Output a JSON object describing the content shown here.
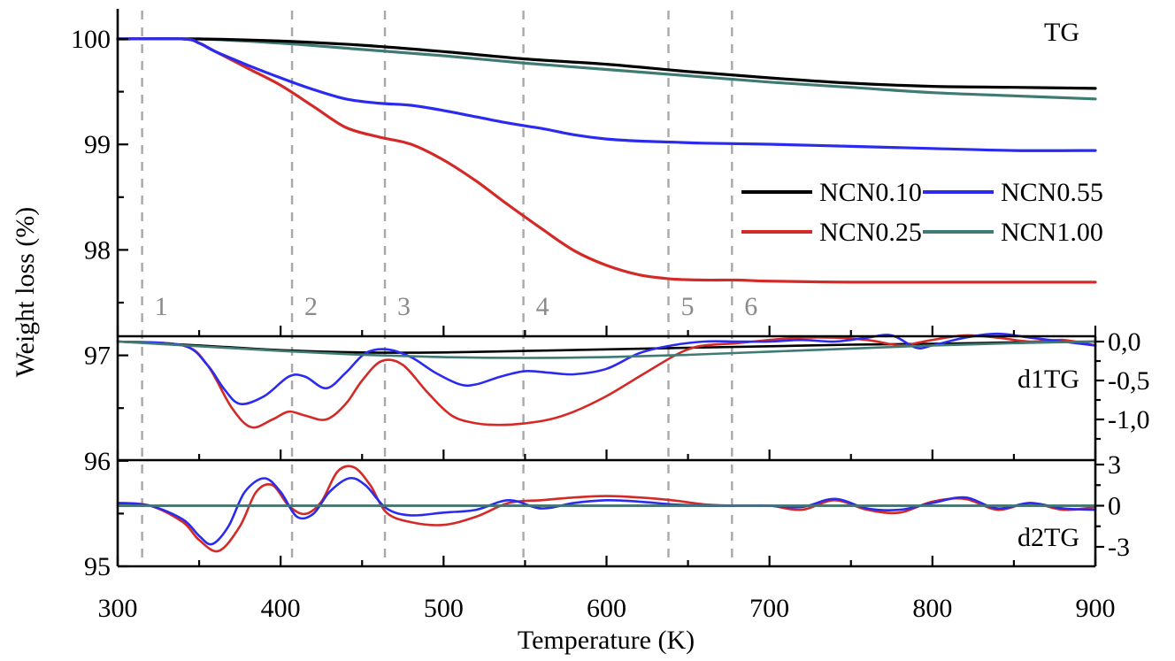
{
  "chart_data": {
    "type": "line",
    "xlabel": "Temperature (K)",
    "ylabel": "Weight loss (%)",
    "xlim": [
      300,
      900
    ],
    "x_ticks": [
      "300",
      "400",
      "500",
      "600",
      "700",
      "800",
      "900"
    ],
    "colors": {
      "NCN0.10": "#000000",
      "NCN0.25": "#d42a27",
      "NCN0.55": "#2b2bf0",
      "NCN1.00": "#3f7a73"
    },
    "vertical_markers": [
      {
        "label": "1",
        "x": 315
      },
      {
        "label": "2",
        "x": 407
      },
      {
        "label": "3",
        "x": 464
      },
      {
        "label": "4",
        "x": 549
      },
      {
        "label": "5",
        "x": 638
      },
      {
        "label": "6",
        "x": 677
      }
    ],
    "panels": [
      {
        "id": "tg",
        "label": "TG",
        "ylim": [
          97.2,
          100.3
        ],
        "legend": "upper-right, two columns",
        "series": [
          {
            "name": "NCN0.10",
            "x": [
              300,
              350,
              400,
              450,
              500,
              550,
              600,
              650,
              700,
              750,
              800,
              850,
              900
            ],
            "y": [
              100.0,
              100.0,
              99.98,
              99.94,
              99.88,
              99.81,
              99.76,
              99.69,
              99.63,
              99.58,
              99.55,
              99.54,
              99.53
            ]
          },
          {
            "name": "NCN0.25",
            "x": [
              300,
              340,
              350,
              360,
              380,
              400,
              420,
              440,
              460,
              480,
              500,
              520,
              540,
              560,
              580,
              600,
              620,
              640,
              660,
              680,
              700,
              750,
              800,
              850,
              900
            ],
            "y": [
              100.0,
              100.0,
              99.96,
              99.88,
              99.72,
              99.56,
              99.36,
              99.16,
              99.07,
              99.0,
              98.85,
              98.65,
              98.42,
              98.2,
              97.99,
              97.85,
              97.76,
              97.72,
              97.71,
              97.71,
              97.7,
              97.69,
              97.69,
              97.69,
              97.69
            ]
          },
          {
            "name": "NCN0.55",
            "x": [
              300,
              340,
              350,
              360,
              380,
              400,
              420,
              440,
              460,
              480,
              500,
              520,
              540,
              560,
              580,
              600,
              620,
              640,
              660,
              700,
              750,
              800,
              850,
              900
            ],
            "y": [
              100.0,
              100.0,
              99.96,
              99.88,
              99.75,
              99.63,
              99.52,
              99.43,
              99.39,
              99.37,
              99.32,
              99.26,
              99.2,
              99.15,
              99.09,
              99.05,
              99.03,
              99.02,
              99.01,
              99.0,
              98.98,
              98.96,
              98.94,
              98.94
            ]
          },
          {
            "name": "NCN1.00",
            "x": [
              300,
              350,
              400,
              450,
              500,
              550,
              600,
              650,
              700,
              750,
              800,
              850,
              900
            ],
            "y": [
              100.0,
              100.0,
              99.96,
              99.9,
              99.84,
              99.77,
              99.71,
              99.65,
              99.59,
              99.54,
              99.49,
              99.46,
              99.43
            ]
          }
        ]
      },
      {
        "id": "d1tg",
        "label": "d1TG",
        "y_ticks": [
          "0,0",
          "-0,5",
          "-1,0"
        ],
        "ylim": [
          -1.45,
          0.15
        ],
        "series": [
          {
            "name": "NCN0.10",
            "x": [
              300,
              350,
              400,
              450,
              500,
              550,
              600,
              650,
              700,
              750,
              800,
              850,
              900
            ],
            "y": [
              0,
              -0.05,
              -0.11,
              -0.14,
              -0.14,
              -0.12,
              -0.1,
              -0.08,
              -0.06,
              -0.04,
              -0.03,
              -0.01,
              0
            ]
          },
          {
            "name": "NCN0.25",
            "x": [
              300,
              340,
              355,
              370,
              382,
              395,
              405,
              415,
              428,
              440,
              450,
              462,
              475,
              490,
              505,
              520,
              535,
              550,
              565,
              580,
              600,
              620,
              640,
              650,
              660,
              680,
              700,
              720,
              740,
              760,
              780,
              790,
              800,
              820,
              840,
              860,
              880,
              900
            ],
            "y": [
              0,
              -0.05,
              -0.3,
              -0.85,
              -1.1,
              -1.0,
              -0.9,
              -0.95,
              -1.0,
              -0.8,
              -0.5,
              -0.25,
              -0.3,
              -0.65,
              -0.95,
              -1.05,
              -1.07,
              -1.05,
              -1.0,
              -0.9,
              -0.7,
              -0.45,
              -0.2,
              -0.1,
              -0.05,
              -0.02,
              0.02,
              0.05,
              0.05,
              0.02,
              -0.05,
              -0.02,
              0.02,
              0.08,
              0.05,
              0.0,
              0.02,
              -0.05
            ]
          },
          {
            "name": "NCN0.55",
            "x": [
              300,
              340,
              355,
              365,
              375,
              390,
              405,
              415,
              428,
              440,
              452,
              465,
              480,
              495,
              510,
              520,
              535,
              550,
              565,
              580,
              600,
              620,
              640,
              660,
              680,
              700,
              720,
              740,
              760,
              775,
              790,
              800,
              820,
              840,
              860,
              880,
              900
            ],
            "y": [
              0,
              -0.05,
              -0.3,
              -0.6,
              -0.8,
              -0.7,
              -0.45,
              -0.45,
              -0.6,
              -0.4,
              -0.15,
              -0.1,
              -0.2,
              -0.4,
              -0.55,
              -0.55,
              -0.45,
              -0.38,
              -0.4,
              -0.42,
              -0.35,
              -0.15,
              -0.05,
              0.0,
              0.0,
              0.0,
              0.02,
              0.0,
              0.05,
              0.08,
              -0.08,
              -0.05,
              0.05,
              0.1,
              0.05,
              0.0,
              -0.05
            ]
          },
          {
            "name": "NCN1.00",
            "x": [
              300,
              350,
              400,
              450,
              500,
              550,
              600,
              650,
              700,
              750,
              800,
              850,
              900
            ],
            "y": [
              0,
              -0.06,
              -0.12,
              -0.17,
              -0.2,
              -0.21,
              -0.2,
              -0.17,
              -0.13,
              -0.09,
              -0.05,
              -0.02,
              0
            ]
          }
        ]
      },
      {
        "id": "d2tg",
        "label": "d2TG",
        "y_ticks": [
          "3",
          "0",
          "-3"
        ],
        "ylim": [
          -4.2,
          4.0
        ],
        "series": [
          {
            "name": "NCN0.10",
            "x": [
              300,
              900
            ],
            "y": [
              0,
              0
            ]
          },
          {
            "name": "NCN0.25",
            "x": [
              300,
              320,
              340,
              350,
              362,
              375,
              385,
              395,
              405,
              415,
              425,
              435,
              445,
              455,
              465,
              480,
              500,
              520,
              540,
              560,
              580,
              600,
              620,
              640,
              660,
              680,
              700,
              720,
              740,
              760,
              780,
              800,
              820,
              840,
              860,
              880,
              900
            ],
            "y": [
              0.2,
              0,
              -1.2,
              -2.5,
              -3.3,
              -1.5,
              1.0,
              1.5,
              0.0,
              -0.6,
              0.3,
              2.5,
              2.8,
              1.5,
              -0.5,
              -1.2,
              -1.4,
              -0.8,
              0.2,
              0.4,
              0.6,
              0.7,
              0.6,
              0.4,
              0.1,
              0.0,
              0.0,
              -0.3,
              0.4,
              -0.3,
              -0.5,
              0.3,
              0.5,
              -0.3,
              0.2,
              -0.3,
              -0.1
            ]
          },
          {
            "name": "NCN0.55",
            "x": [
              300,
              320,
              340,
              350,
              358,
              368,
              378,
              390,
              400,
              410,
              420,
              430,
              442,
              452,
              465,
              480,
              500,
              520,
              540,
              560,
              580,
              600,
              620,
              640,
              660,
              680,
              700,
              720,
              740,
              760,
              780,
              800,
              820,
              840,
              860,
              880,
              900
            ],
            "y": [
              0.2,
              0,
              -1.0,
              -2.2,
              -2.8,
              -1.5,
              1.0,
              2.0,
              1.0,
              -0.8,
              -0.6,
              1.0,
              2.0,
              1.5,
              -0.2,
              -0.7,
              -0.5,
              -0.3,
              0.4,
              -0.2,
              0.2,
              0.4,
              0.3,
              0.1,
              0.0,
              0.0,
              0.0,
              -0.1,
              0.5,
              -0.2,
              -0.3,
              0.2,
              0.6,
              -0.2,
              0.2,
              -0.2,
              -0.3
            ]
          },
          {
            "name": "NCN1.00",
            "x": [
              300,
              900
            ],
            "y": [
              0,
              0
            ]
          }
        ]
      }
    ],
    "left_axis": {
      "ylim": [
        95,
        100.3
      ],
      "ticks": [
        "100",
        "99",
        "98",
        "97",
        "96",
        "95"
      ]
    }
  }
}
